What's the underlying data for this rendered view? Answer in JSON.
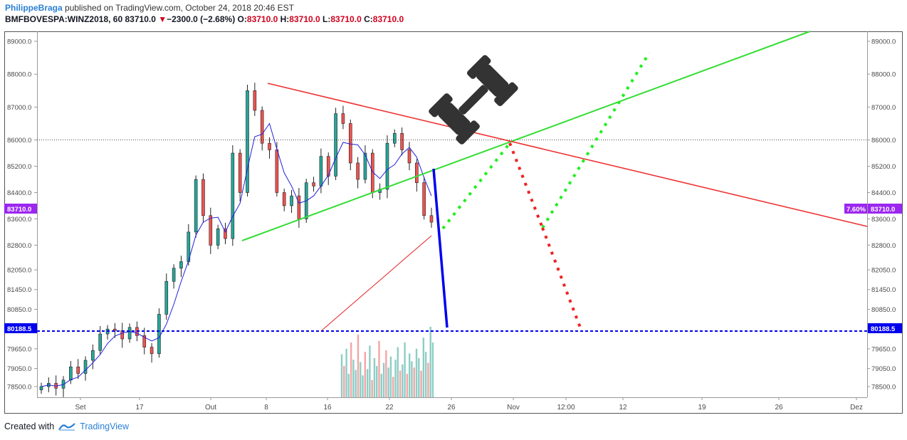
{
  "header": {
    "username": "PhilippeBraga",
    "published": " published on TradingView.com, October 24, 2018 20:46 EST",
    "symbol": "BMFBOVESPA:WINZ2018, 60",
    "last": "83710.0",
    "change": "−2300.0 (−2.68%)",
    "o_label": "O:",
    "o_value": "83710.0",
    "h_label": "H:",
    "h_value": "83710.0",
    "l_label": "L:",
    "l_value": "83710.0",
    "c_label": "C:",
    "c_value": "83710.0"
  },
  "footer": {
    "created_with": "Created with",
    "brand": "TradingView"
  },
  "colors": {
    "up_candle": "#26a69a",
    "down_candle": "#ef5350",
    "volume_up": "#8ecdc5",
    "volume_down": "#f4a5a5",
    "sma_fast": "#2222dd",
    "sma_slow": "#e02222",
    "support_line": "#33dd33",
    "resistance_line": "#ee3333",
    "target_line": "#0000ee",
    "price_tag": "#9c27f0"
  },
  "chart_data": {
    "type": "candlestick",
    "y_ticks": [
      "89000.0",
      "88000.0",
      "87000.0",
      "86000.0",
      "85200.0",
      "84400.0",
      "83600.0",
      "82800.0",
      "82050.0",
      "81450.0",
      "80850.0",
      "80188.5",
      "79650.0",
      "79050.0",
      "78500.0"
    ],
    "y_range": [
      78100,
      89300
    ],
    "x_ticks": [
      "Set",
      "17",
      "Out",
      "8",
      "16",
      "22",
      "26",
      "Nov",
      "12:00",
      "12",
      "19",
      "26",
      "Dez"
    ],
    "price_labels": {
      "last_price": "83710.0",
      "percent": "7.60%",
      "target": "80188.5"
    },
    "levels": {
      "dotted_resistance": 86000,
      "target_dashed": 80188.5
    },
    "close_series": [
      78500,
      78600,
      78450,
      78700,
      79100,
      78900,
      79300,
      79600,
      80100,
      80250,
      80200,
      79950,
      80300,
      80050,
      79700,
      79500,
      80700,
      81700,
      82100,
      82300,
      83200,
      84800,
      83700,
      82800,
      83300,
      83000,
      85600,
      84400,
      87500,
      86900,
      85900,
      85700,
      84400,
      84000,
      84300,
      83600,
      84700,
      84600,
      85500,
      84900,
      86800,
      86500,
      85300,
      84800,
      85600,
      84400,
      84500,
      85900,
      86200,
      85700,
      85300,
      84700,
      83700,
      83500
    ],
    "volume_profile": [
      55,
      40,
      62,
      30,
      70,
      48,
      35,
      80,
      45,
      28,
      58,
      36,
      66,
      22,
      50,
      40,
      72,
      30,
      44,
      60,
      38,
      52,
      26,
      48,
      64,
      34,
      42,
      70,
      30,
      56,
      46,
      38,
      62,
      50,
      34,
      76,
      58,
      44,
      90,
      70
    ]
  }
}
